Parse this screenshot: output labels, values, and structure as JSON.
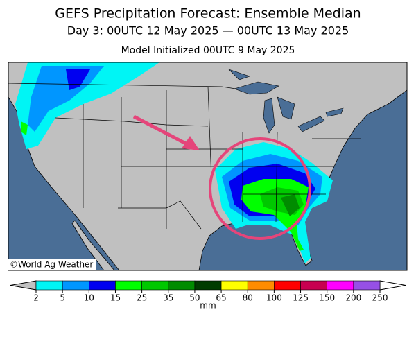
{
  "title": "GEFS Precipitation Forecast: Ensemble Median",
  "subtitle": "Day 3: 00UTC 12 May 2025 — 00UTC 13 May 2025",
  "initialized": "Model Initialized 00UTC 9 May 2025",
  "credit": "©World Ag Weather",
  "colorbar": {
    "ticks": [
      2,
      5,
      10,
      15,
      25,
      35,
      50,
      65,
      80,
      100,
      125,
      150,
      200,
      250
    ],
    "colors": [
      "#00f5f5",
      "#0096ff",
      "#0000f0",
      "#00ff00",
      "#00c800",
      "#008c00",
      "#003c00",
      "#ffff00",
      "#ff8c00",
      "#ff0000",
      "#c80050",
      "#ff00ff",
      "#9650e6"
    ],
    "under_color": "#c0c0c0",
    "over_color": "#ffffff",
    "unit": "mm"
  }
}
